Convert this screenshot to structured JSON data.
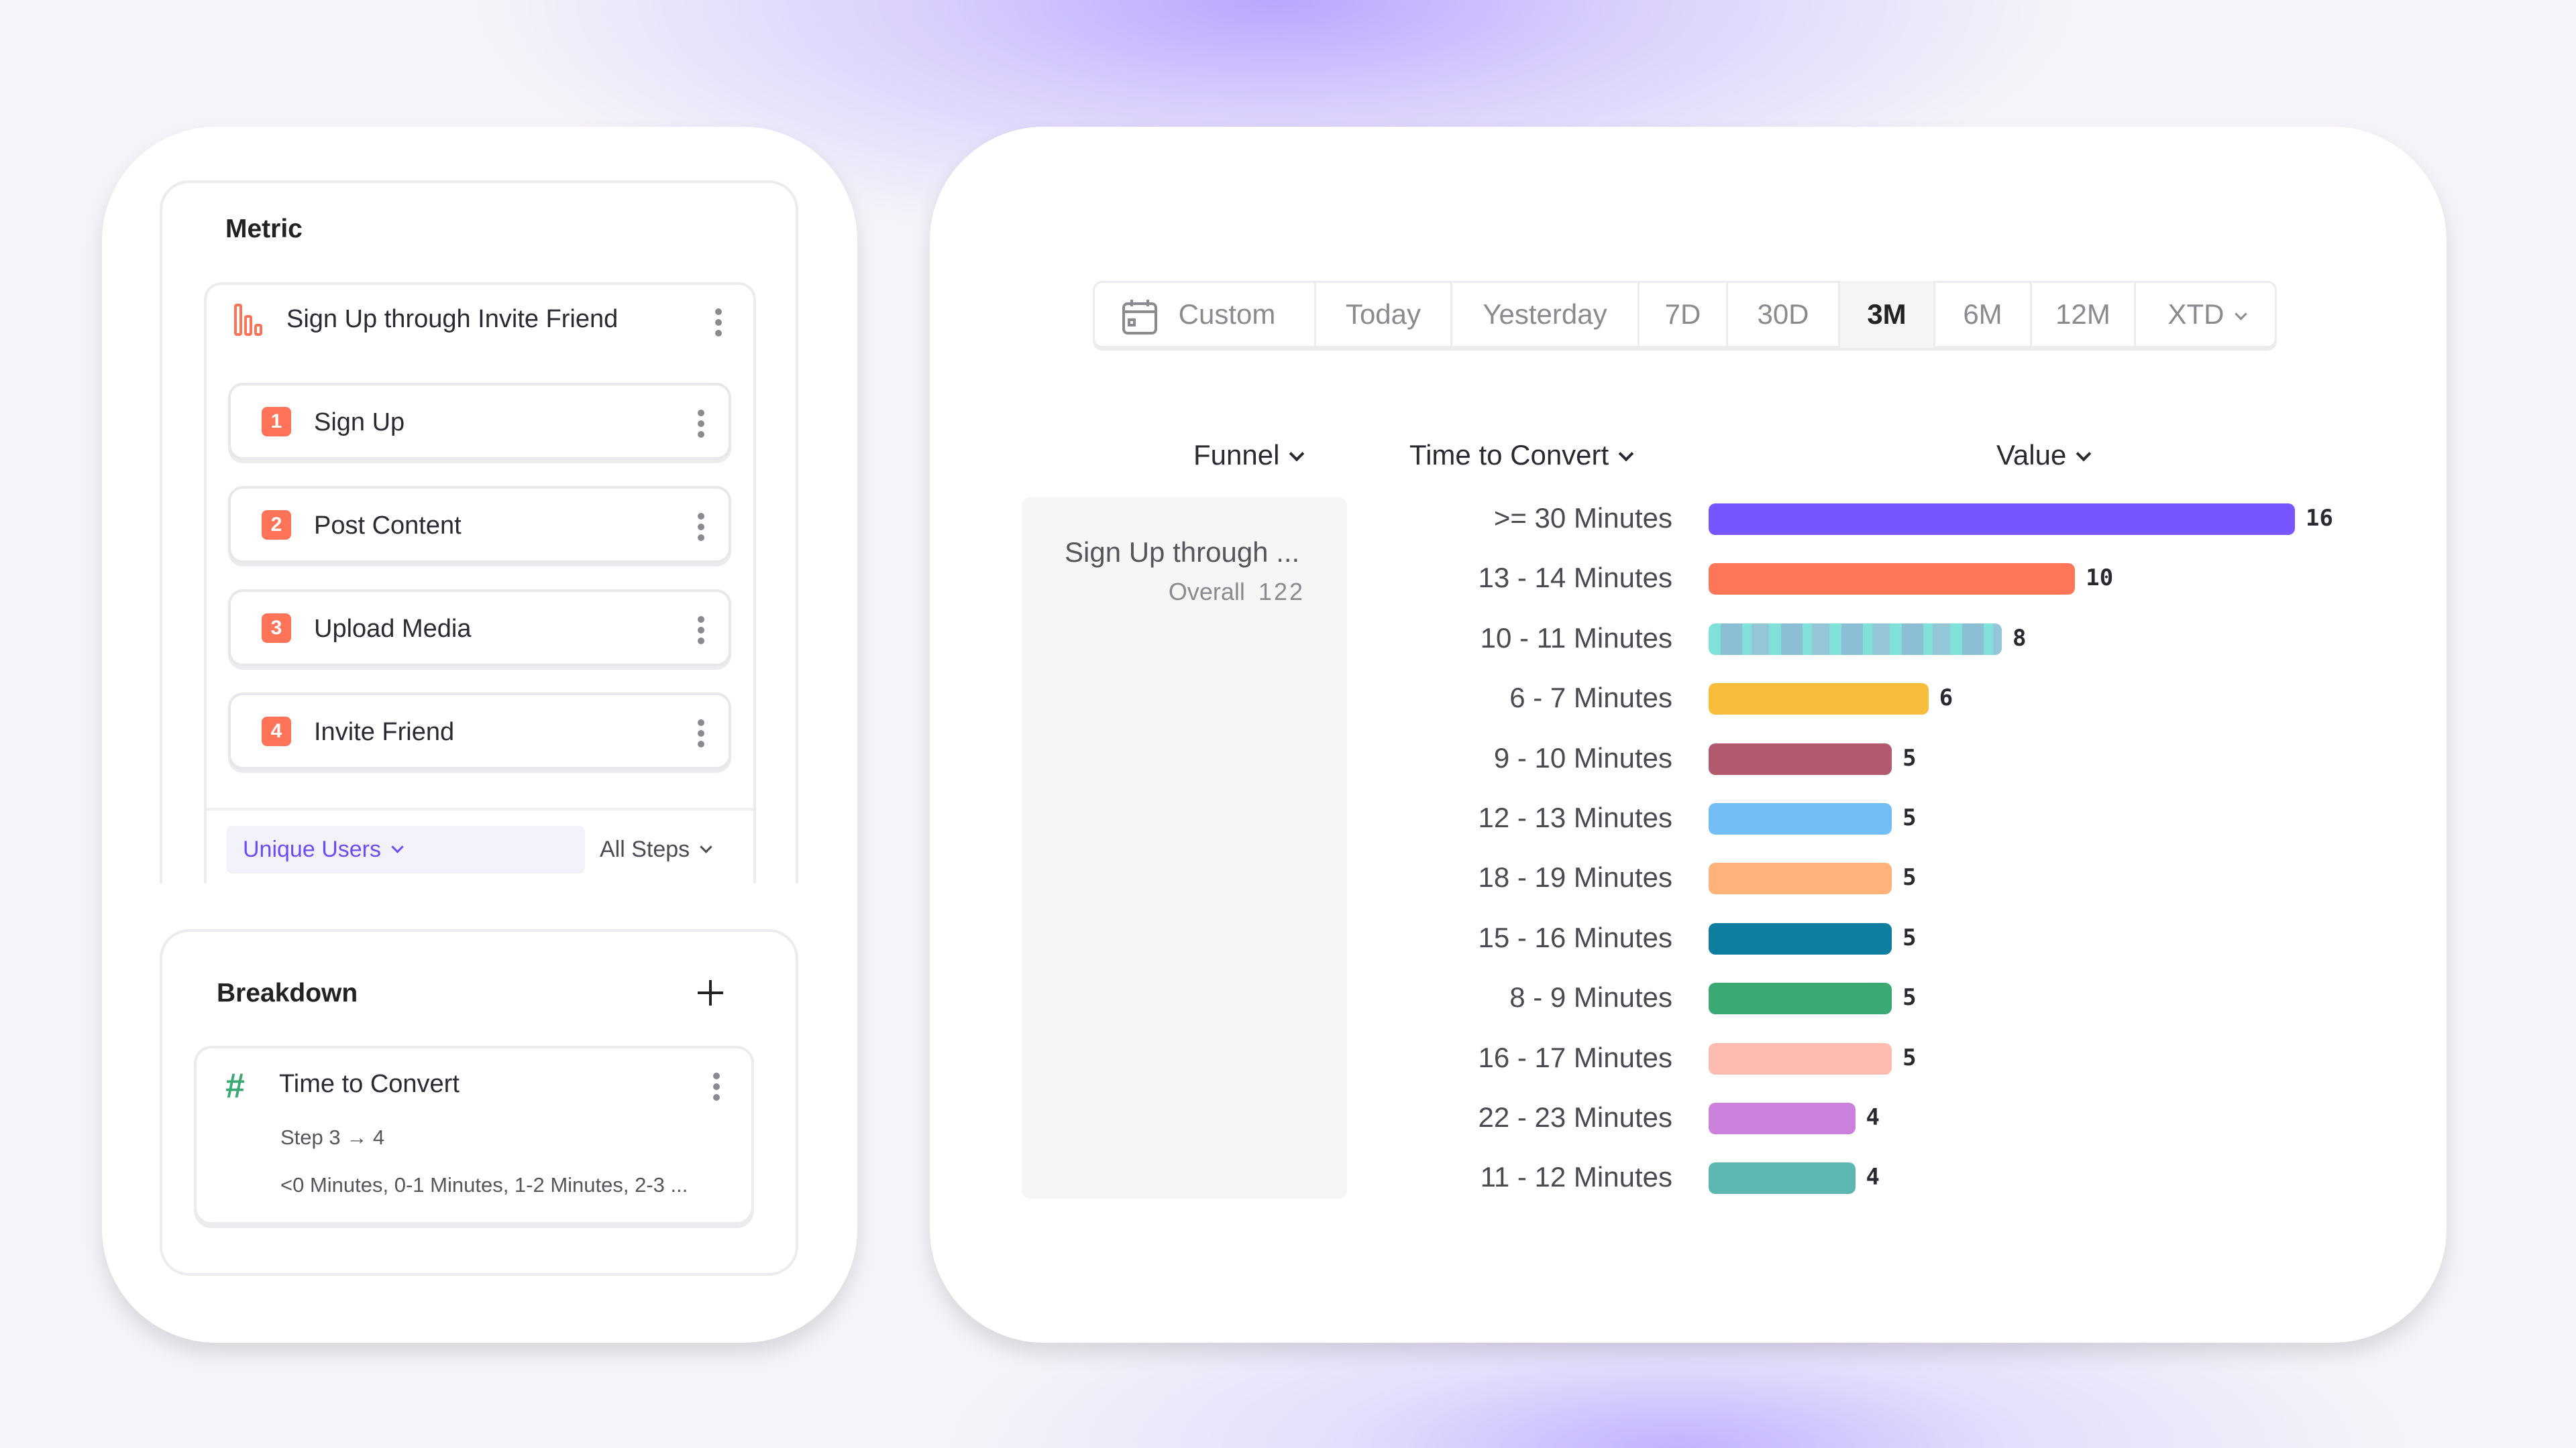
{
  "metric": {
    "title": "Metric",
    "funnel_name": "Sign Up through Invite Friend",
    "steps": [
      {
        "num": "1",
        "label": "Sign Up"
      },
      {
        "num": "2",
        "label": "Post Content"
      },
      {
        "num": "3",
        "label": "Upload Media"
      },
      {
        "num": "4",
        "label": "Invite Friend"
      }
    ],
    "measure": "Unique Users",
    "step_scope": "All Steps"
  },
  "breakdown": {
    "title": "Breakdown",
    "item": {
      "title": "Time to Convert",
      "subtitle": "Step 3 → 4",
      "values": "<0 Minutes, 0-1 Minutes, 1-2 Minutes, 2-3 ..."
    }
  },
  "date_range": {
    "options": [
      "Custom",
      "Today",
      "Yesterday",
      "7D",
      "30D",
      "3M",
      "6M",
      "12M",
      "XTD"
    ],
    "selected": "3M"
  },
  "table": {
    "headers": {
      "funnel": "Funnel",
      "breakdown": "Time to Convert",
      "value": "Value"
    },
    "funnel_cell": {
      "name": "Sign Up through ...",
      "overall_label": "Overall",
      "overall_value": "122"
    }
  },
  "chart_data": {
    "type": "bar",
    "orientation": "horizontal",
    "categories": [
      ">= 30 Minutes",
      "13 - 14 Minutes",
      "10 - 11 Minutes",
      "6 - 7 Minutes",
      "9 - 10 Minutes",
      "12 - 13 Minutes",
      "18 - 19 Minutes",
      "15 - 16 Minutes",
      "8 - 9 Minutes",
      "16 - 17 Minutes",
      "22 - 23 Minutes",
      "11 - 12 Minutes"
    ],
    "values": [
      16,
      10,
      8,
      6,
      5,
      5,
      5,
      5,
      5,
      5,
      4,
      4
    ],
    "colors": [
      "#7856ff",
      "#ff7557",
      "#80e1d9",
      "#f8bc3b",
      "#b2596e",
      "#72bef4",
      "#ffb27a",
      "#0d7ea0",
      "#3ba974",
      "#febbb2",
      "#cb80dc",
      "#5bb7af"
    ]
  }
}
